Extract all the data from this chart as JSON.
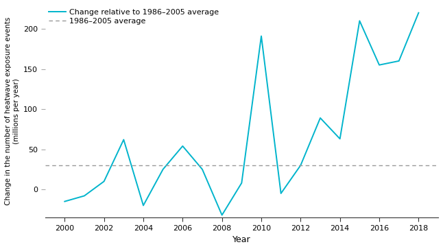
{
  "years": [
    2000,
    2001,
    2002,
    2003,
    2004,
    2005,
    2006,
    2007,
    2008,
    2009,
    2010,
    2011,
    2012,
    2013,
    2014,
    2015,
    2016,
    2017,
    2018
  ],
  "values": [
    -15,
    -8,
    10,
    62,
    -20,
    25,
    54,
    25,
    -32,
    8,
    191,
    -5,
    30,
    89,
    63,
    210,
    155,
    160,
    220
  ],
  "avg_value": 30,
  "line_color": "#00b4cc",
  "avg_color": "#999999",
  "ylabel_line1": "Change in the number of heatwave exposure events",
  "ylabel_line2": "(millions per year)",
  "xlabel": "Year",
  "ylim_bottom": -35,
  "ylim_top": 230,
  "yticks": [
    0,
    50,
    100,
    150,
    200
  ],
  "xticks": [
    2000,
    2002,
    2004,
    2006,
    2008,
    2010,
    2012,
    2014,
    2016,
    2018
  ],
  "xlim": [
    1999,
    2019
  ],
  "legend_line_label": "Change relative to 1986–2005 average",
  "legend_avg_label": "1986–2005 average",
  "background_color": "#ffffff"
}
